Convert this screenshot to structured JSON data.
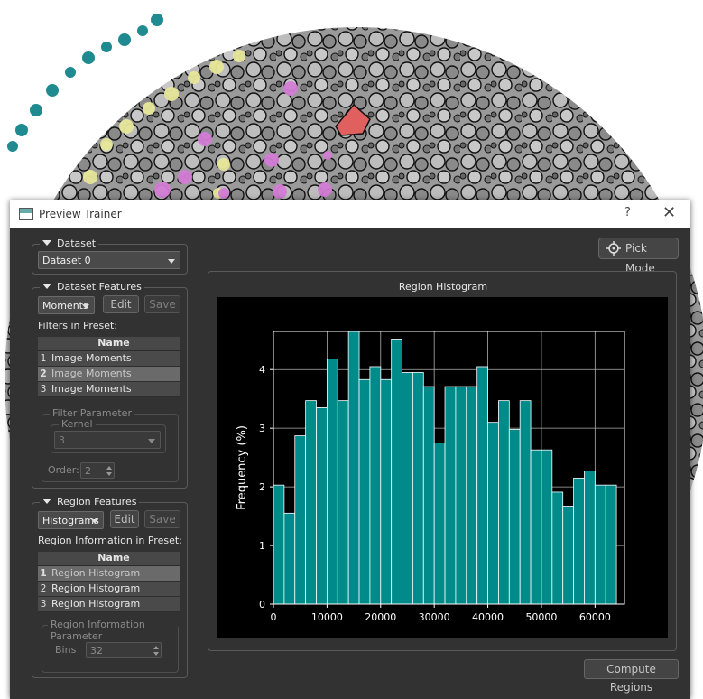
{
  "window": {
    "title": "Preview Trainer",
    "help": "?",
    "close": "✕"
  },
  "dataset": {
    "group_title": "Dataset",
    "selected": "Dataset 0"
  },
  "dataset_features": {
    "group_title": "Dataset Features",
    "preset": "Moments",
    "edit_label": "Edit",
    "save_label": "Save",
    "filters_label": "Filters in Preset:",
    "column_header": "Name",
    "rows": [
      {
        "num": "1",
        "name": "Image Moments"
      },
      {
        "num": "2",
        "name": "Image Moments"
      },
      {
        "num": "3",
        "name": "Image Moments"
      }
    ],
    "filter_parameter": {
      "title": "Filter Parameter",
      "kernel_title": "Kernel",
      "kernel_value": "3",
      "order_label": "Order:",
      "order_value": "2"
    }
  },
  "region_features": {
    "group_title": "Region Features",
    "preset": "Histograms",
    "edit_label": "Edit",
    "save_label": "Save",
    "info_label": "Region Information in Preset:",
    "column_header": "Name",
    "rows": [
      {
        "num": "1",
        "name": "Region Histogram"
      },
      {
        "num": "2",
        "name": "Region Histogram"
      },
      {
        "num": "3",
        "name": "Region Histogram"
      }
    ],
    "info_parameter": {
      "title": "Region Information Parameter",
      "bins_label": "Bins",
      "bins_value": "32"
    }
  },
  "pick_mode_label": "Pick Mode",
  "compute_label": "Compute Regions",
  "plot_panel_title": "Region Histogram",
  "chart_data": {
    "type": "bar",
    "title": "",
    "xlabel": "",
    "ylabel": "Frequency (%)",
    "xlim": [
      0,
      65500
    ],
    "ylim": [
      0,
      4.65
    ],
    "xticks": [
      0,
      10000,
      20000,
      30000,
      40000,
      50000,
      60000
    ],
    "yticks": [
      0,
      1,
      2,
      3,
      4
    ],
    "bin_width": 2000,
    "bin_starts": [
      0,
      2000,
      4000,
      6000,
      8000,
      10000,
      12000,
      14000,
      16000,
      18000,
      20000,
      22000,
      24000,
      26000,
      28000,
      30000,
      32000,
      34000,
      36000,
      38000,
      40000,
      42000,
      44000,
      46000,
      48000,
      50000,
      52000,
      54000,
      56000,
      58000,
      60000,
      62000
    ],
    "values": [
      2.03,
      1.55,
      2.87,
      3.47,
      3.35,
      4.18,
      3.47,
      4.65,
      3.83,
      4.05,
      3.83,
      4.52,
      3.95,
      3.95,
      3.71,
      2.75,
      3.71,
      3.71,
      3.71,
      4.05,
      3.1,
      3.47,
      2.98,
      3.47,
      2.63,
      2.63,
      1.91,
      1.67,
      2.15,
      2.27,
      2.03,
      2.03
    ],
    "bar_color": "#008b8b",
    "background": "#000000",
    "grid": true
  }
}
